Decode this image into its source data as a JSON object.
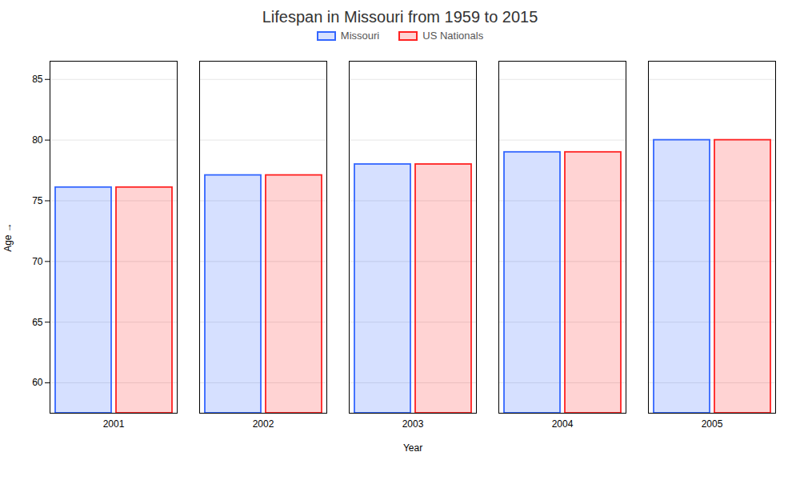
{
  "chart_data": {
    "type": "bar",
    "title": "Lifespan in Missouri from 1959 to 2015",
    "xlabel": "Year",
    "ylabel": "Age",
    "categories": [
      "2001",
      "2002",
      "2003",
      "2004",
      "2005"
    ],
    "series": [
      {
        "name": "Missouri",
        "color": "#3366ff",
        "values": [
          76.1,
          77.1,
          78.0,
          79.0,
          80.0
        ]
      },
      {
        "name": "US Nationals",
        "color": "#ff2222",
        "values": [
          76.1,
          77.1,
          78.0,
          79.0,
          80.0
        ]
      }
    ],
    "ylim": [
      57.5,
      86.5
    ],
    "yticks": [
      60,
      65,
      70,
      75,
      80,
      85
    ],
    "grid": true,
    "legend": "top"
  }
}
